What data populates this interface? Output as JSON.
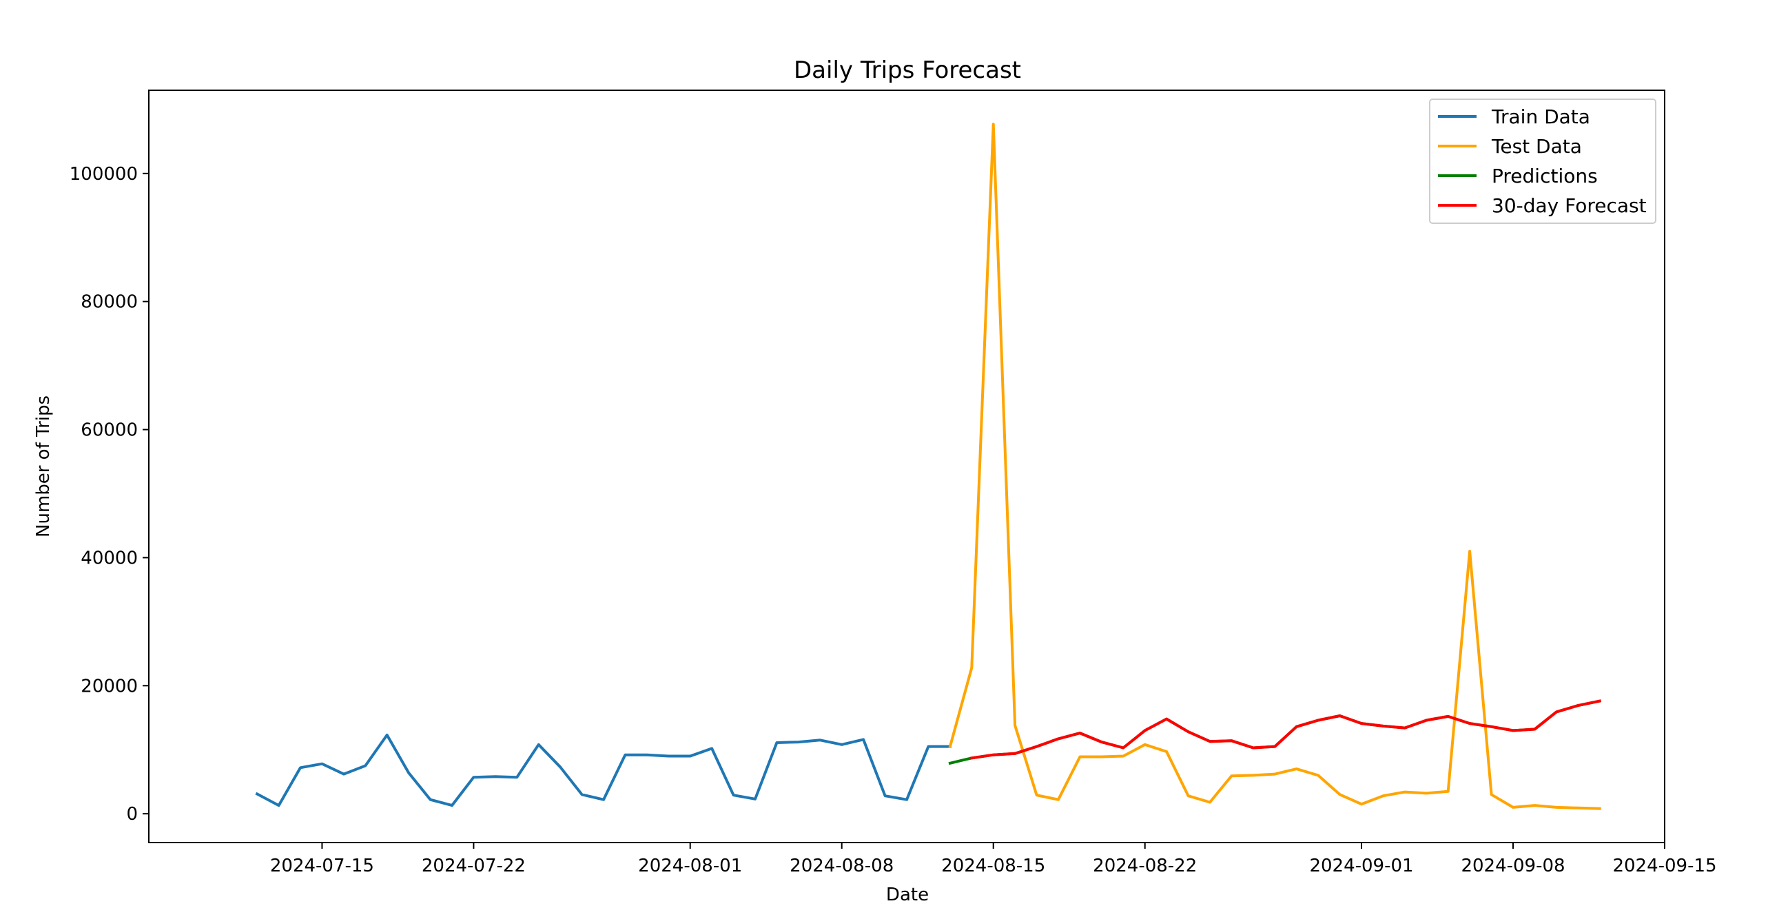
{
  "chart_data": {
    "type": "line",
    "title": "Daily Trips Forecast",
    "xlabel": "Date",
    "ylabel": "Number of Trips",
    "x_ticks": [
      "2024-07-15",
      "2024-07-22",
      "2024-08-01",
      "2024-08-08",
      "2024-08-15",
      "2024-08-22",
      "2024-09-01",
      "2024-09-08",
      "2024-09-15"
    ],
    "y_ticks": [
      0,
      20000,
      40000,
      60000,
      80000,
      100000
    ],
    "xlim": [
      "2024-07-07",
      "2024-09-15"
    ],
    "ylim": [
      -4500,
      113000
    ],
    "legend_position": "top-right",
    "grid": false,
    "series": [
      {
        "name": "Train Data",
        "color": "#1f77b4",
        "x": [
          "2024-07-12",
          "2024-07-13",
          "2024-07-14",
          "2024-07-15",
          "2024-07-16",
          "2024-07-17",
          "2024-07-18",
          "2024-07-19",
          "2024-07-20",
          "2024-07-21",
          "2024-07-22",
          "2024-07-23",
          "2024-07-24",
          "2024-07-25",
          "2024-07-26",
          "2024-07-27",
          "2024-07-28",
          "2024-07-29",
          "2024-07-30",
          "2024-07-31",
          "2024-08-01",
          "2024-08-02",
          "2024-08-03",
          "2024-08-04",
          "2024-08-05",
          "2024-08-06",
          "2024-08-07",
          "2024-08-08",
          "2024-08-09",
          "2024-08-10",
          "2024-08-11",
          "2024-08-12",
          "2024-08-13"
        ],
        "y": [
          3100,
          1300,
          7200,
          7800,
          6200,
          7500,
          12300,
          6400,
          2200,
          1300,
          5700,
          5800,
          5700,
          10800,
          7300,
          3000,
          2200,
          9200,
          9200,
          9000,
          9000,
          10200,
          2900,
          2300,
          11100,
          11200,
          11500,
          10800,
          11600,
          2800,
          2200,
          10500,
          10500
        ]
      },
      {
        "name": "Test Data",
        "color": "#ffa500",
        "x": [
          "2024-08-13",
          "2024-08-14",
          "2024-08-15",
          "2024-08-16",
          "2024-08-17",
          "2024-08-18",
          "2024-08-19",
          "2024-08-20",
          "2024-08-21",
          "2024-08-22",
          "2024-08-23",
          "2024-08-24",
          "2024-08-25",
          "2024-08-26",
          "2024-08-27",
          "2024-08-28",
          "2024-08-29",
          "2024-08-30",
          "2024-08-31",
          "2024-09-01",
          "2024-09-02",
          "2024-09-03",
          "2024-09-04",
          "2024-09-05",
          "2024-09-06",
          "2024-09-07",
          "2024-09-08",
          "2024-09-09",
          "2024-09-10",
          "2024-09-11",
          "2024-09-12"
        ],
        "y": [
          10500,
          22800,
          107700,
          13800,
          2900,
          2200,
          8900,
          8900,
          9000,
          10800,
          9700,
          2800,
          1800,
          5900,
          6000,
          6200,
          7000,
          6000,
          3000,
          1500,
          2800,
          3400,
          3200,
          3500,
          41000,
          3000,
          1000,
          1300,
          1000,
          900,
          800
        ]
      },
      {
        "name": "Predictions",
        "color": "#008000",
        "x": [
          "2024-08-13",
          "2024-08-14",
          "2024-08-15",
          "2024-08-16",
          "2024-08-17",
          "2024-08-18",
          "2024-08-19",
          "2024-08-20",
          "2024-08-21",
          "2024-08-22",
          "2024-08-23",
          "2024-08-24",
          "2024-08-25",
          "2024-08-26",
          "2024-08-27",
          "2024-08-28",
          "2024-08-29",
          "2024-08-30",
          "2024-08-31",
          "2024-09-01",
          "2024-09-02",
          "2024-09-03",
          "2024-09-04",
          "2024-09-05",
          "2024-09-06",
          "2024-09-07",
          "2024-09-08",
          "2024-09-09",
          "2024-09-10",
          "2024-09-11",
          "2024-09-12"
        ],
        "y": [
          7900,
          8700,
          9200,
          9400,
          10500,
          11700,
          12600,
          11200,
          10300,
          13000,
          14800,
          12800,
          11300,
          11400,
          10300,
          10500,
          13600,
          14600,
          15300,
          14100,
          13700,
          13400,
          14600,
          15200,
          14100,
          13600,
          13000,
          13200,
          15900,
          16900,
          17600
        ]
      },
      {
        "name": "30-day Forecast",
        "color": "#ff0000",
        "x": [
          "2024-08-14",
          "2024-08-15",
          "2024-08-16",
          "2024-08-17",
          "2024-08-18",
          "2024-08-19",
          "2024-08-20",
          "2024-08-21",
          "2024-08-22",
          "2024-08-23",
          "2024-08-24",
          "2024-08-25",
          "2024-08-26",
          "2024-08-27",
          "2024-08-28",
          "2024-08-29",
          "2024-08-30",
          "2024-08-31",
          "2024-09-01",
          "2024-09-02",
          "2024-09-03",
          "2024-09-04",
          "2024-09-05",
          "2024-09-06",
          "2024-09-07",
          "2024-09-08",
          "2024-09-09",
          "2024-09-10",
          "2024-09-11",
          "2024-09-12"
        ],
        "y": [
          8700,
          9200,
          9400,
          10500,
          11700,
          12600,
          11200,
          10300,
          13000,
          14800,
          12800,
          11300,
          11400,
          10300,
          10500,
          13600,
          14600,
          15300,
          14100,
          13700,
          13400,
          14600,
          15200,
          14100,
          13600,
          13000,
          13200,
          15900,
          16900,
          17600
        ]
      }
    ]
  }
}
